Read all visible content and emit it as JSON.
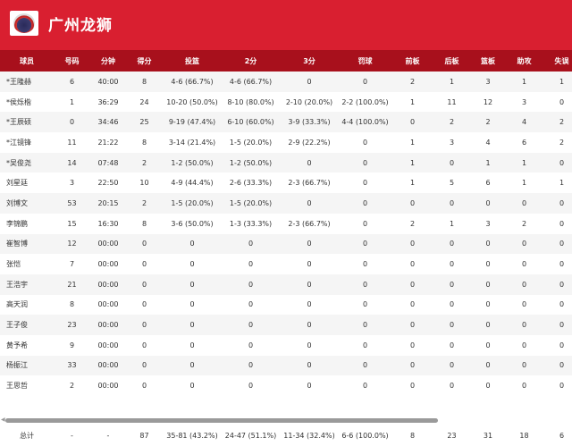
{
  "team": {
    "name": "广州龙狮",
    "logo_text": "龙狮",
    "color": "#d91f30",
    "header_color": "#a8101c"
  },
  "columns": [
    "球员",
    "号码",
    "分钟",
    "得分",
    "投篮",
    "2分",
    "3分",
    "罚球",
    "前板",
    "后板",
    "篮板",
    "助攻",
    "失误"
  ],
  "players": [
    [
      "*王隆赫",
      "6",
      "40:00",
      "8",
      "4-6 (66.7%)",
      "4-6 (66.7%)",
      "0",
      "0",
      "2",
      "1",
      "3",
      "1",
      "1"
    ],
    [
      "*侯烁楷",
      "1",
      "36:29",
      "24",
      "10-20 (50.0%)",
      "8-10 (80.0%)",
      "2-10 (20.0%)",
      "2-2 (100.0%)",
      "1",
      "11",
      "12",
      "3",
      "0"
    ],
    [
      "*王辰硕",
      "0",
      "34:46",
      "25",
      "9-19 (47.4%)",
      "6-10 (60.0%)",
      "3-9 (33.3%)",
      "4-4 (100.0%)",
      "0",
      "2",
      "2",
      "4",
      "2"
    ],
    [
      "*江镜锋",
      "11",
      "21:22",
      "8",
      "3-14 (21.4%)",
      "1-5 (20.0%)",
      "2-9 (22.2%)",
      "0",
      "1",
      "3",
      "4",
      "6",
      "2"
    ],
    [
      "*吴俊尧",
      "14",
      "07:48",
      "2",
      "1-2 (50.0%)",
      "1-2 (50.0%)",
      "0",
      "0",
      "1",
      "0",
      "1",
      "1",
      "0"
    ],
    [
      "刘星廷",
      "3",
      "22:50",
      "10",
      "4-9 (44.4%)",
      "2-6 (33.3%)",
      "2-3 (66.7%)",
      "0",
      "1",
      "5",
      "6",
      "1",
      "1"
    ],
    [
      "刘博文",
      "53",
      "20:15",
      "2",
      "1-5 (20.0%)",
      "1-5 (20.0%)",
      "0",
      "0",
      "0",
      "0",
      "0",
      "0",
      "0"
    ],
    [
      "李锦鹏",
      "15",
      "16:30",
      "8",
      "3-6 (50.0%)",
      "1-3 (33.3%)",
      "2-3 (66.7%)",
      "0",
      "2",
      "1",
      "3",
      "2",
      "0"
    ],
    [
      "崔智博",
      "12",
      "00:00",
      "0",
      "0",
      "0",
      "0",
      "0",
      "0",
      "0",
      "0",
      "0",
      "0"
    ],
    [
      "张恺",
      "7",
      "00:00",
      "0",
      "0",
      "0",
      "0",
      "0",
      "0",
      "0",
      "0",
      "0",
      "0"
    ],
    [
      "王浩宇",
      "21",
      "00:00",
      "0",
      "0",
      "0",
      "0",
      "0",
      "0",
      "0",
      "0",
      "0",
      "0"
    ],
    [
      "高天润",
      "8",
      "00:00",
      "0",
      "0",
      "0",
      "0",
      "0",
      "0",
      "0",
      "0",
      "0",
      "0"
    ],
    [
      "王子俊",
      "23",
      "00:00",
      "0",
      "0",
      "0",
      "0",
      "0",
      "0",
      "0",
      "0",
      "0",
      "0"
    ],
    [
      "黄予希",
      "9",
      "00:00",
      "0",
      "0",
      "0",
      "0",
      "0",
      "0",
      "0",
      "0",
      "0",
      "0"
    ],
    [
      "杨振江",
      "33",
      "00:00",
      "0",
      "0",
      "0",
      "0",
      "0",
      "0",
      "0",
      "0",
      "0",
      "0"
    ],
    [
      "王思哲",
      "2",
      "00:00",
      "0",
      "0",
      "0",
      "0",
      "0",
      "0",
      "0",
      "0",
      "0",
      "0"
    ]
  ],
  "total": [
    "总计",
    "-",
    "-",
    "87",
    "35-81 (43.2%)",
    "24-47 (51.1%)",
    "11-34 (32.4%)",
    "6-6 (100.0%)",
    "8",
    "23",
    "31",
    "18",
    "6"
  ],
  "scrollbar": {
    "position_fraction": 0
  }
}
